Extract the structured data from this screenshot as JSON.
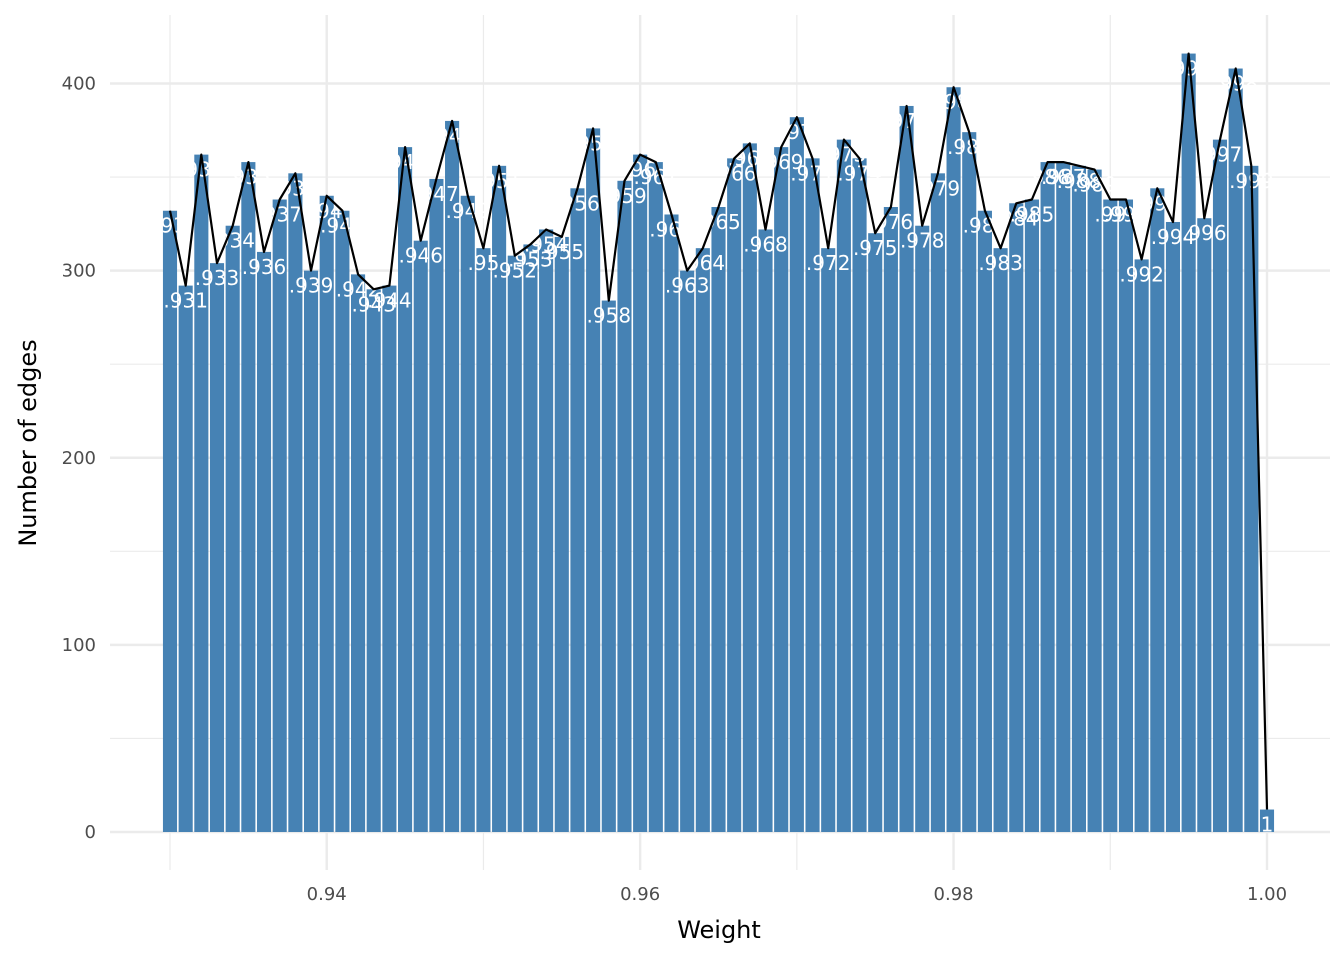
{
  "chart_data": {
    "type": "bar",
    "title": "",
    "xlabel": "Weight",
    "ylabel": "Number of edges",
    "xlim": [
      0.929,
      1.001
    ],
    "ylim": [
      0,
      420
    ],
    "bin_width": 0.001,
    "x_ticks": [
      0.94,
      0.96,
      0.98,
      1.0
    ],
    "x_tick_labels": [
      "0.94",
      "0.96",
      "0.98",
      "1.00"
    ],
    "y_ticks": [
      0,
      100,
      200,
      300,
      400
    ],
    "y_tick_labels": [
      "0",
      "100",
      "200",
      "300",
      "400"
    ],
    "grid": true,
    "legend": "none",
    "bar_color": "#4682B4",
    "line_color": "#000000",
    "label_color": "#FFFFFF",
    "x": [
      0.93,
      0.931,
      0.932,
      0.933,
      0.934,
      0.935,
      0.936,
      0.937,
      0.938,
      0.939,
      0.94,
      0.941,
      0.942,
      0.943,
      0.944,
      0.945,
      0.946,
      0.947,
      0.948,
      0.949,
      0.95,
      0.951,
      0.952,
      0.953,
      0.954,
      0.955,
      0.956,
      0.957,
      0.958,
      0.959,
      0.96,
      0.961,
      0.962,
      0.963,
      0.964,
      0.965,
      0.966,
      0.967,
      0.968,
      0.969,
      0.97,
      0.971,
      0.972,
      0.973,
      0.974,
      0.975,
      0.976,
      0.977,
      0.978,
      0.979,
      0.98,
      0.981,
      0.982,
      0.983,
      0.984,
      0.985,
      0.986,
      0.987,
      0.988,
      0.989,
      0.99,
      0.991,
      0.992,
      0.993,
      0.994,
      0.995,
      0.996,
      0.997,
      0.998,
      0.999,
      1.0
    ],
    "values": [
      332,
      292,
      362,
      304,
      324,
      358,
      310,
      338,
      352,
      300,
      340,
      332,
      298,
      290,
      292,
      366,
      316,
      349,
      380,
      340,
      312,
      356,
      308,
      314,
      322,
      318,
      344,
      376,
      284,
      348,
      362,
      358,
      330,
      300,
      312,
      334,
      360,
      368,
      322,
      366,
      382,
      360,
      312,
      370,
      360,
      320,
      334,
      388,
      324,
      352,
      398,
      374,
      332,
      312,
      336,
      338,
      358,
      358,
      356,
      354,
      338,
      338,
      306,
      344,
      326,
      416,
      328,
      370,
      408,
      356,
      12
    ],
    "labels": [
      ".93",
      ".931",
      ".932",
      ".933",
      ".934",
      ".935",
      ".936",
      ".937",
      ".938",
      ".939",
      ".94",
      ".941",
      ".942",
      ".943",
      ".944",
      ".945",
      ".946",
      ".947",
      ".948",
      ".949",
      ".95",
      ".951",
      ".952",
      ".953",
      ".954",
      ".955",
      ".956",
      ".957",
      ".958",
      ".959",
      ".96",
      ".961",
      ".962",
      ".963",
      ".964",
      ".965",
      ".966",
      ".967",
      ".968",
      ".969",
      ".97",
      ".971",
      ".972",
      ".973",
      ".974",
      ".975",
      ".976",
      ".977",
      ".978",
      ".979",
      ".98",
      ".981",
      ".982",
      ".983",
      ".984",
      ".985",
      ".986",
      ".987",
      ".988",
      ".989",
      ".99",
      ".991",
      ".992",
      ".993",
      ".994",
      ".995",
      ".996",
      ".997",
      ".998",
      ".999",
      "1"
    ]
  }
}
